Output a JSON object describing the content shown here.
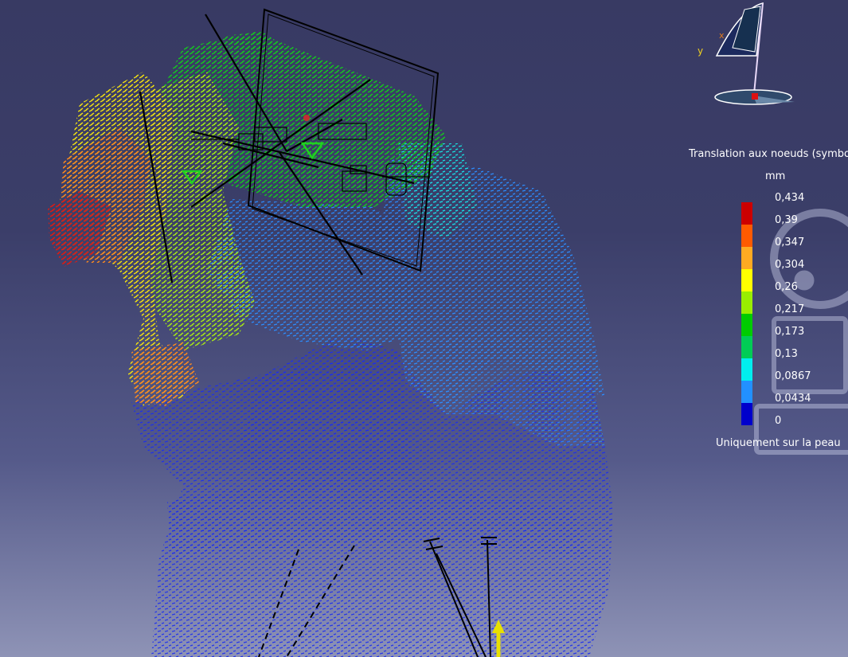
{
  "viewport": {
    "background_top": "#383a63",
    "background_bottom": "#8e93b6"
  },
  "legend": {
    "title": "Translation aux noeuds (symbole",
    "unit": "mm",
    "colors": [
      "#cc0000",
      "#ff5a00",
      "#ffaa22",
      "#ffff00",
      "#99ee00",
      "#00cc00",
      "#00cc55",
      "#00eeee",
      "#2290ff",
      "#0000cc"
    ],
    "ticks": [
      "0,434",
      "0,39",
      "0,347",
      "0,304",
      "0,26",
      "0,217",
      "0,173",
      "0,13",
      "0,0867",
      "0,0434",
      "0"
    ],
    "footer": "Uniquement sur la peau"
  },
  "compass": {
    "y_label": "y",
    "x_label": "x",
    "icon": "compass-axis-icon"
  },
  "icons": {
    "load_arrow": "load-arrow-icon",
    "navigation_wheel": "navigation-wheel-icon"
  }
}
